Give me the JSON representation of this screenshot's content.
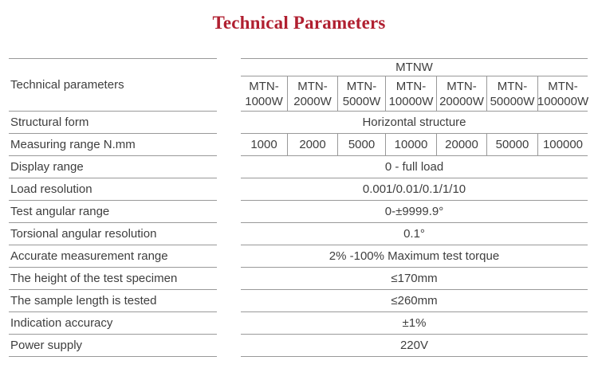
{
  "title": {
    "text": "Technical Parameters"
  },
  "colors": {
    "title": "#b01f30",
    "line": "#999999",
    "text": "#3e3e3e"
  },
  "table": {
    "param_header": "Technical parameters",
    "series_header": "MTNW",
    "models": [
      {
        "line1": "MTN-",
        "line2": "1000W"
      },
      {
        "line1": "MTN-",
        "line2": "2000W"
      },
      {
        "line1": "MTN-",
        "line2": "5000W"
      },
      {
        "line1": "MTN-",
        "line2": "10000W"
      },
      {
        "line1": "MTN-",
        "line2": "20000W"
      },
      {
        "line1": "MTN-",
        "line2": "50000W"
      },
      {
        "line1": "MTN-",
        "line2": "100000W"
      }
    ],
    "rows": {
      "structural_form": {
        "label": "Structural form",
        "value": "Horizontal structure"
      },
      "measuring_range": {
        "label": "Measuring range N.mm",
        "values": [
          "1000",
          "2000",
          "5000",
          "10000",
          "20000",
          "50000",
          "100000"
        ]
      },
      "display_range": {
        "label": "Display range",
        "value": "0 - full load"
      },
      "load_resolution": {
        "label": "Load resolution",
        "value": "0.001/0.01/0.1/1/10"
      },
      "test_angular_range": {
        "label": "Test angular range",
        "value": "0-±9999.9°"
      },
      "torsional_angular_resolution": {
        "label": "Torsional angular resolution",
        "value": "0.1°"
      },
      "accurate_measurement_range": {
        "label": "Accurate measurement range",
        "value": "2% -100% Maximum test torque"
      },
      "specimen_height": {
        "label": "The height of the test specimen",
        "value": "≤170mm"
      },
      "sample_length": {
        "label": "The sample length is tested",
        "value": "≤260mm"
      },
      "indication_accuracy": {
        "label": "Indication accuracy",
        "value": "±1%"
      },
      "power_supply": {
        "label": "Power supply",
        "value": "220V"
      }
    }
  }
}
